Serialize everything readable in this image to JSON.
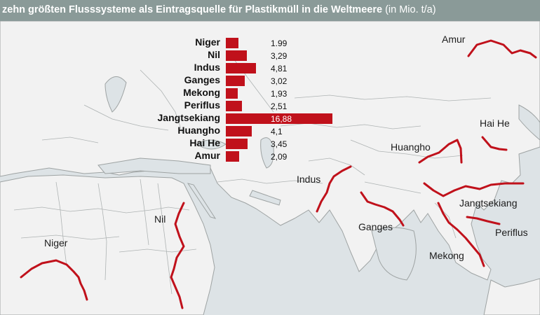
{
  "title": {
    "main": "zehn größten Flusssysteme als Eintragsquelle für Plastikmüll in die Weltmeere",
    "unit": "(in Mio. t/a)"
  },
  "colors": {
    "title_bar": "#8a9a98",
    "bar": "#c0111b",
    "river": "#c0111b",
    "land": "#f2f2f2",
    "water": "#dde3e6",
    "border": "#9ea3a3"
  },
  "map_labels": {
    "niger": "Niger",
    "nil": "Nil",
    "indus": "Indus",
    "ganges": "Ganges",
    "mekong": "Mekong",
    "huangho": "Huangho",
    "jangtsekiang": "Jangtsekiang",
    "periflus": "Periflus",
    "hai_he": "Hai He",
    "amur": "Amur"
  },
  "chart_data": {
    "type": "bar",
    "orientation": "horizontal",
    "title": "zehn größten Flusssysteme als Eintragsquelle für Plastikmüll in die Weltmeere",
    "unit": "(in Mio. t/a)",
    "categories": [
      "Niger",
      "Nil",
      "Indus",
      "Ganges",
      "Mekong",
      "Periflus",
      "Jangtsekiang",
      "Huangho",
      "Hai He",
      "Amur"
    ],
    "values": [
      1.99,
      3.29,
      4.81,
      3.02,
      1.93,
      2.51,
      16.88,
      4.1,
      3.45,
      2.09
    ],
    "value_labels": [
      "1.99",
      "3,29",
      "4,81",
      "3,02",
      "1,93",
      "2,51",
      "16,88",
      "4,1",
      "3,45",
      "2,09"
    ],
    "grid": false,
    "legend": "none"
  }
}
